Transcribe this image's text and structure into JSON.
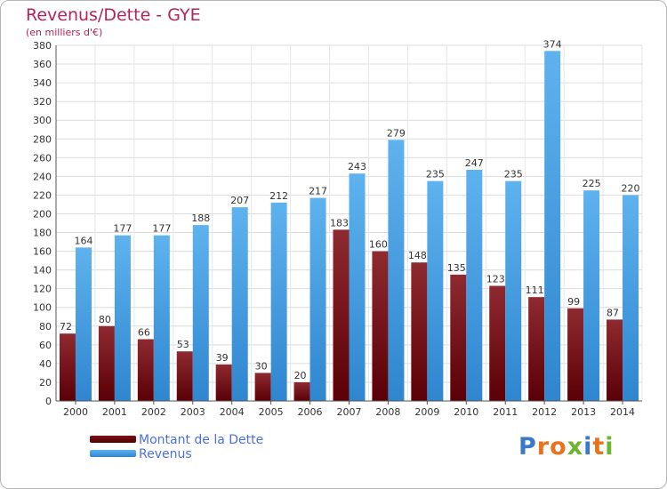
{
  "title": "Revenus/Dette - GYE",
  "subtitle": "(en milliers d'€)",
  "colors": {
    "dette": "#7a1015",
    "revenus": "#4ba3e6",
    "title": "#b4245a",
    "legend_text": "#4a6ef0"
  },
  "chart_data": {
    "type": "bar",
    "categories": [
      "2000",
      "2001",
      "2002",
      "2003",
      "2004",
      "2005",
      "2006",
      "2007",
      "2008",
      "2009",
      "2010",
      "2011",
      "2012",
      "2013",
      "2014"
    ],
    "series": [
      {
        "name": "Montant de la Dette",
        "values": [
          72,
          80,
          66,
          53,
          39,
          30,
          20,
          183,
          160,
          148,
          135,
          123,
          111,
          99,
          87
        ]
      },
      {
        "name": "Revenus",
        "values": [
          164,
          177,
          177,
          188,
          207,
          212,
          217,
          243,
          279,
          235,
          247,
          235,
          374,
          225,
          220
        ]
      }
    ],
    "ylim": [
      0,
      380
    ],
    "ytick_step": 20,
    "grid": true,
    "legend_position": "bottom-left"
  },
  "logo": {
    "text": "Proxiti"
  }
}
